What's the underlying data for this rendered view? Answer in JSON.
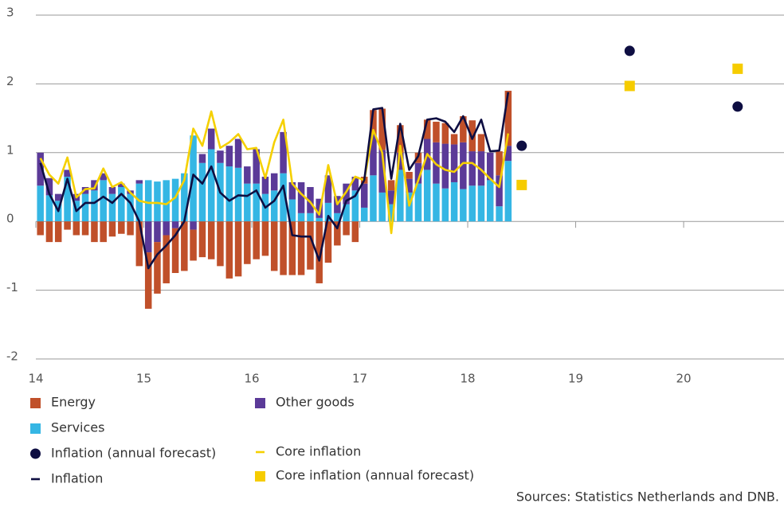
{
  "chart_data": {
    "type": "bar",
    "x": [
      14.042,
      14.125,
      14.208,
      14.292,
      14.375,
      14.458,
      14.542,
      14.625,
      14.708,
      14.792,
      14.875,
      14.958,
      15.042,
      15.125,
      15.208,
      15.292,
      15.375,
      15.458,
      15.542,
      15.625,
      15.708,
      15.792,
      15.875,
      15.958,
      16.042,
      16.125,
      16.208,
      16.292,
      16.375,
      16.458,
      16.542,
      16.625,
      16.708,
      16.792,
      16.875,
      16.958,
      17.042,
      17.125,
      17.208,
      17.292,
      17.375,
      17.458,
      17.542,
      17.625,
      17.708,
      17.792,
      17.875,
      17.958,
      18.042,
      18.125,
      18.208,
      18.292,
      18.375
    ],
    "series": [
      {
        "name": "Energy",
        "type": "bar",
        "color": "#c0502a",
        "values": [
          -0.2,
          -0.3,
          -0.3,
          -0.12,
          -0.2,
          -0.2,
          -0.3,
          -0.3,
          -0.22,
          -0.18,
          -0.2,
          -0.65,
          -0.82,
          -0.75,
          -0.7,
          -0.65,
          -0.72,
          -0.45,
          -0.52,
          -0.55,
          -0.65,
          -0.83,
          -0.8,
          -0.62,
          -0.55,
          -0.5,
          -0.72,
          -0.78,
          -0.78,
          -0.78,
          -0.7,
          -0.9,
          -0.6,
          -0.35,
          -0.2,
          -0.3,
          0.1,
          0.35,
          0.6,
          0.15,
          0.4,
          0.1,
          0.15,
          0.28,
          0.3,
          0.3,
          0.15,
          0.38,
          0.45,
          0.25,
          0,
          0.35,
          0.8
        ]
      },
      {
        "name": "Other goods",
        "type": "bar",
        "color": "#5b3a98",
        "values": [
          0.48,
          0.25,
          0.1,
          0.1,
          0.1,
          0.1,
          0.15,
          0.1,
          0.1,
          0.05,
          0.05,
          0.05,
          -0.45,
          -0.3,
          -0.2,
          -0.1,
          0,
          -0.12,
          0.13,
          0.3,
          0.18,
          0.3,
          0.42,
          0.25,
          0.5,
          0.25,
          0.25,
          0.6,
          0.25,
          0.45,
          0.38,
          0.28,
          0.4,
          0.25,
          0.3,
          0.2,
          0.35,
          0.6,
          0.62,
          0.2,
          0.25,
          0.2,
          0.3,
          0.45,
          0.6,
          0.65,
          0.55,
          0.68,
          0.5,
          0.5,
          0.4,
          0.45,
          0.22
        ]
      },
      {
        "name": "Services",
        "type": "bar",
        "color": "#35b6e4",
        "values": [
          0.52,
          0.38,
          0.3,
          0.65,
          0.3,
          0.4,
          0.45,
          0.6,
          0.4,
          0.5,
          0.4,
          0.55,
          0.6,
          0.58,
          0.6,
          0.62,
          0.7,
          1.25,
          0.85,
          1.05,
          0.85,
          0.8,
          0.78,
          0.55,
          0.55,
          0.4,
          0.45,
          0.7,
          0.32,
          0.12,
          0.12,
          0.05,
          0.27,
          0.12,
          0.25,
          0.45,
          0.2,
          0.67,
          0.42,
          0.25,
          0.75,
          0.42,
          0.55,
          0.75,
          0.55,
          0.48,
          0.57,
          0.47,
          0.52,
          0.52,
          0.6,
          0.22,
          0.88
        ]
      },
      {
        "name": "Core inflation",
        "type": "line",
        "color": "#f5d000",
        "values": [
          0.92,
          0.68,
          0.55,
          0.93,
          0.35,
          0.47,
          0.48,
          0.77,
          0.5,
          0.57,
          0.42,
          0.3,
          0.27,
          0.27,
          0.25,
          0.35,
          0.6,
          1.35,
          1.1,
          1.6,
          1.07,
          1.15,
          1.27,
          1.05,
          1.07,
          0.63,
          1.15,
          1.48,
          0.55,
          0.4,
          0.28,
          0.1,
          0.82,
          0.25,
          0.43,
          0.65,
          0.6,
          1.33,
          1,
          -0.17,
          1.1,
          0.23,
          0.6,
          0.98,
          0.83,
          0.75,
          0.72,
          0.85,
          0.85,
          0.75,
          0.62,
          0.5,
          1.28
        ]
      },
      {
        "name": "Inflation (annual forecast)",
        "type": "scatter",
        "marker": "circle",
        "color": "#0e0e42",
        "x": [
          18.5,
          19.5,
          20.5
        ],
        "values": [
          1.1,
          2.48,
          1.67
        ]
      },
      {
        "name": "Core inflation (annual forecast)",
        "type": "scatter",
        "marker": "square",
        "color": "#f6cc00",
        "x": [
          18.5,
          19.5,
          20.5
        ],
        "values": [
          0.53,
          1.97,
          2.22
        ]
      },
      {
        "name": "Inflation",
        "type": "line",
        "color": "#0e0e42",
        "values": [
          0.85,
          0.4,
          0.15,
          0.62,
          0.15,
          0.27,
          0.27,
          0.36,
          0.27,
          0.4,
          0.27,
          0,
          -0.68,
          -0.48,
          -0.35,
          -0.2,
          0,
          0.68,
          0.55,
          0.8,
          0.42,
          0.3,
          0.38,
          0.37,
          0.45,
          0.2,
          0.3,
          0.52,
          -0.2,
          -0.22,
          -0.22,
          -0.57,
          0.08,
          -0.1,
          0.3,
          0.37,
          0.6,
          1.63,
          1.65,
          0.62,
          1.42,
          0.75,
          0.95,
          1.48,
          1.5,
          1.45,
          1.3,
          1.53,
          1.2,
          1.48,
          1.02,
          1.03,
          1.88
        ]
      }
    ],
    "xlim": [
      14,
      20.9
    ],
    "xticks": [
      14,
      15,
      16,
      17,
      18,
      19,
      20
    ],
    "ylim": [
      -2,
      3
    ],
    "yticks": [
      -2,
      -1,
      0,
      1,
      2,
      3
    ],
    "grid": true,
    "source": "Sources: Statistics Netherlands and DNB."
  }
}
